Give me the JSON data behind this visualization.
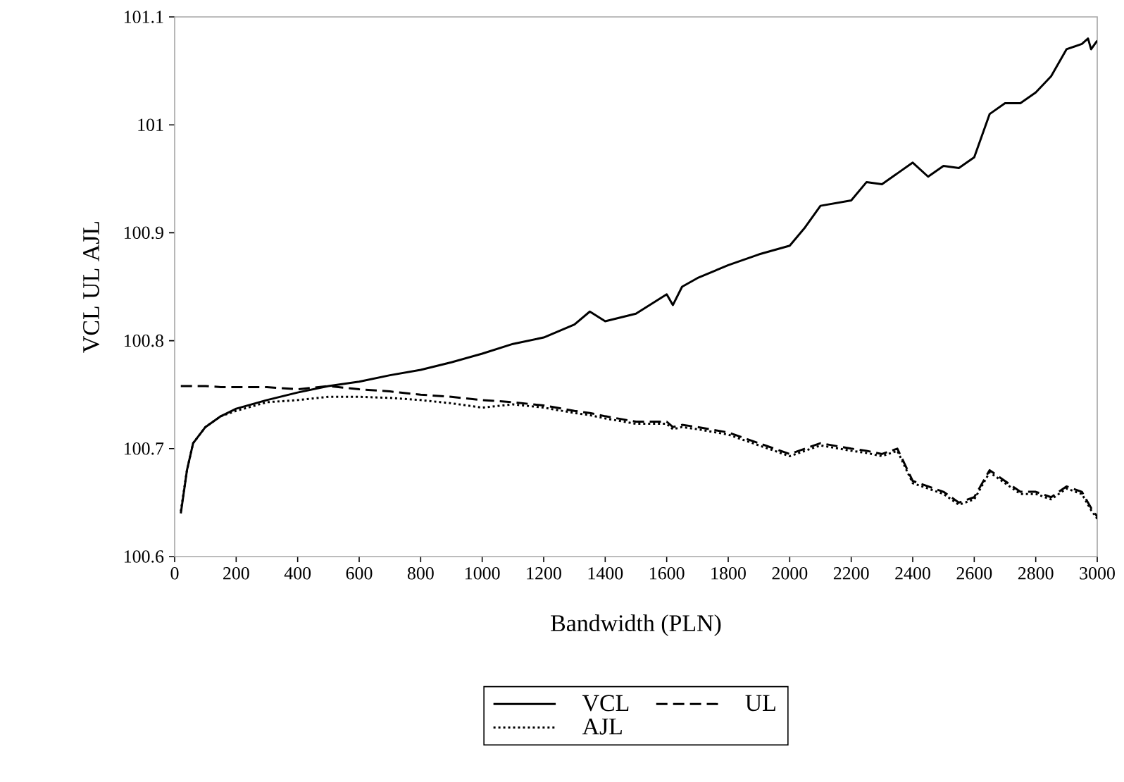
{
  "chart_data": {
    "type": "line",
    "xlabel": "Bandwidth (PLN)",
    "ylabel": "VCL  UL  AJL",
    "xlim": [
      0,
      3000
    ],
    "xticks": [
      0,
      200,
      400,
      600,
      800,
      1000,
      1200,
      1400,
      1600,
      1800,
      2000,
      2200,
      2400,
      2600,
      2800,
      3000
    ],
    "ylim": [
      100.6,
      101.1
    ],
    "yticks": [
      100.6,
      100.7,
      100.8,
      100.9,
      101,
      101.1
    ],
    "grid": false,
    "legend": "bottom",
    "marker": "none",
    "x": [
      20,
      40,
      60,
      100,
      150,
      200,
      300,
      400,
      500,
      600,
      700,
      800,
      900,
      1000,
      1100,
      1200,
      1300,
      1350,
      1400,
      1500,
      1600,
      1620,
      1650,
      1700,
      1800,
      1900,
      2000,
      2050,
      2100,
      2200,
      2250,
      2300,
      2350,
      2400,
      2450,
      2500,
      2550,
      2600,
      2650,
      2700,
      2750,
      2800,
      2850,
      2900,
      2950,
      2970,
      2980,
      3000
    ],
    "series": [
      {
        "name": "VCL",
        "color": "#000000",
        "line_style": "solid",
        "values": [
          100.64,
          100.68,
          100.705,
          100.72,
          100.73,
          100.737,
          100.745,
          100.752,
          100.758,
          100.762,
          100.768,
          100.773,
          100.78,
          100.788,
          100.797,
          100.803,
          100.815,
          100.827,
          100.818,
          100.825,
          100.843,
          100.833,
          100.85,
          100.858,
          100.87,
          100.88,
          100.888,
          100.905,
          100.925,
          100.93,
          100.947,
          100.945,
          100.955,
          100.965,
          100.952,
          100.962,
          100.96,
          100.97,
          101.01,
          101.02,
          101.02,
          101.03,
          101.045,
          101.07,
          101.075,
          101.08,
          101.07,
          101.078
        ]
      },
      {
        "name": "UL",
        "color": "#000000",
        "line_style": "dashed",
        "values": [
          100.758,
          100.758,
          100.758,
          100.758,
          100.757,
          100.757,
          100.757,
          100.755,
          100.758,
          100.755,
          100.753,
          100.75,
          100.748,
          100.745,
          100.743,
          100.74,
          100.735,
          100.733,
          100.73,
          100.725,
          100.725,
          100.72,
          100.722,
          100.72,
          100.715,
          100.705,
          100.695,
          100.7,
          100.705,
          100.7,
          100.698,
          100.695,
          100.7,
          100.67,
          100.665,
          100.66,
          100.65,
          100.655,
          100.68,
          100.67,
          100.66,
          100.66,
          100.655,
          100.665,
          100.66,
          100.65,
          100.645,
          100.637
        ]
      },
      {
        "name": "AJL",
        "color": "#000000",
        "line_style": "dotted",
        "values": [
          100.642,
          100.68,
          100.705,
          100.72,
          100.73,
          100.735,
          100.743,
          100.745,
          100.748,
          100.748,
          100.747,
          100.745,
          100.742,
          100.738,
          100.741,
          100.738,
          100.733,
          100.731,
          100.728,
          100.723,
          100.723,
          100.718,
          100.72,
          100.718,
          100.713,
          100.703,
          100.693,
          100.698,
          100.703,
          100.698,
          100.696,
          100.693,
          100.698,
          100.668,
          100.663,
          100.658,
          100.648,
          100.653,
          100.678,
          100.668,
          100.658,
          100.658,
          100.653,
          100.663,
          100.658,
          100.648,
          100.643,
          100.635
        ]
      }
    ]
  }
}
